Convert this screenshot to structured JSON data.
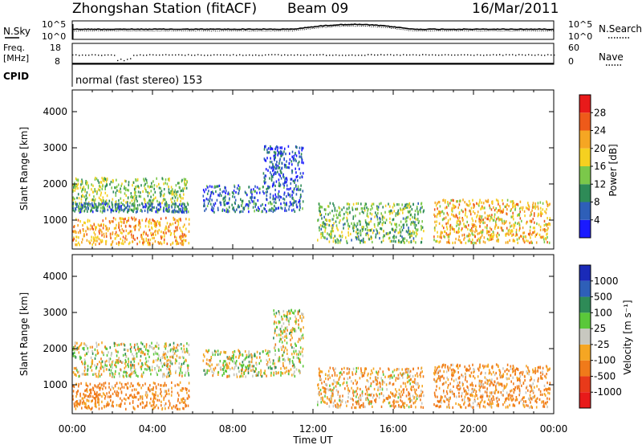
{
  "header": {
    "station": "Zhongshan Station (fitACF)",
    "beam": "Beam 09",
    "date": "16/Mar/2011"
  },
  "noise_panel": {
    "left_label": "N.Sky",
    "right_label": "N.Search",
    "left_ticks": [
      "10^5",
      "10^0"
    ],
    "right_ticks": [
      "10^5",
      "10^0"
    ]
  },
  "freq_panel": {
    "left_label_1": "Freq.",
    "left_label_2": "[MHz]",
    "right_label": "Nave",
    "left_ticks": [
      "18",
      "8"
    ],
    "right_ticks": [
      "60",
      "0"
    ]
  },
  "cpid": {
    "label": "CPID",
    "value": "normal (fast stereo) 153"
  },
  "x_axis": {
    "ticks": [
      "00:00",
      "04:00",
      "08:00",
      "12:00",
      "16:00",
      "20:00",
      "00:00"
    ],
    "title": "Time UT"
  },
  "power_panel": {
    "ylabel": "Slant Range [km]",
    "yticks": [
      "1000",
      "2000",
      "3000",
      "4000"
    ],
    "colorbar_title": "Power [dB]",
    "colorbar_labels": [
      "4",
      "8",
      "12",
      "16",
      "20",
      "24",
      "28"
    ],
    "colorbar_colors": [
      "#1a1aff",
      "#2e5fb8",
      "#2e8b57",
      "#7bc84a",
      "#f5d020",
      "#f5a623",
      "#ee5a1a",
      "#e81a1a"
    ]
  },
  "velocity_panel": {
    "ylabel": "Slant Range [km]",
    "yticks": [
      "1000",
      "2000",
      "3000",
      "4000"
    ],
    "colorbar_title": "Velocity [m s⁻¹]",
    "colorbar_labels": [
      "1000",
      "500",
      "100",
      "25",
      "-25",
      "-100",
      "-500",
      "-1000"
    ],
    "colorbar_colors": [
      "#1a2ab8",
      "#2e5fb8",
      "#2e8b57",
      "#5ac83a",
      "#c8c8c0",
      "#f5a623",
      "#f07a1a",
      "#e83a1a",
      "#e81a1a"
    ]
  },
  "chart_data": {
    "type": "heatmap",
    "title": "Zhongshan Station (fitACF)  Beam 09  16/Mar/2011",
    "xlabel": "Time UT",
    "ylabel": "Slant Range [km]",
    "xlim": [
      0,
      24
    ],
    "ylim": [
      200,
      4600
    ],
    "power_range_dB": [
      0,
      30
    ],
    "velocity_range": [
      -1000,
      1000
    ],
    "power_regions": [
      {
        "t0": 0.0,
        "t1": 5.8,
        "r0": 1500,
        "r1": 2200,
        "power": 14
      },
      {
        "t0": 0.0,
        "t1": 5.8,
        "r0": 1250,
        "r1": 1500,
        "power": 8
      },
      {
        "t0": 0.0,
        "t1": 5.8,
        "r0": 350,
        "r1": 1100,
        "power": 22
      },
      {
        "t0": 6.5,
        "t1": 11.5,
        "r0": 1250,
        "r1": 2000,
        "power": 7
      },
      {
        "t0": 9.5,
        "t1": 11.5,
        "r0": 2000,
        "r1": 3100,
        "power": 5
      },
      {
        "t0": 12.2,
        "t1": 17.5,
        "r0": 400,
        "r1": 1500,
        "power": 13
      },
      {
        "t0": 18.0,
        "t1": 23.8,
        "r0": 400,
        "r1": 1600,
        "power": 20
      }
    ],
    "velocity_regions": [
      {
        "t0": 0.0,
        "t1": 5.8,
        "r0": 1250,
        "r1": 2200,
        "velocity": 0
      },
      {
        "t0": 0.0,
        "t1": 5.8,
        "r0": 350,
        "r1": 1100,
        "velocity": -150
      },
      {
        "t0": 6.5,
        "t1": 11.5,
        "r0": 1250,
        "r1": 2000,
        "velocity": 0
      },
      {
        "t0": 10.0,
        "t1": 11.5,
        "r0": 2000,
        "r1": 3100,
        "velocity": 0
      },
      {
        "t0": 12.2,
        "t1": 17.5,
        "r0": 400,
        "r1": 1500,
        "velocity": -80
      },
      {
        "t0": 18.0,
        "t1": 23.8,
        "r0": 400,
        "r1": 1600,
        "velocity": -120
      }
    ],
    "noise_sky": {
      "base": 0.7,
      "bump_t": [
        11,
        17
      ]
    },
    "nave": {
      "base": 0.6,
      "dip_t": [
        2.2,
        3.0
      ]
    }
  }
}
